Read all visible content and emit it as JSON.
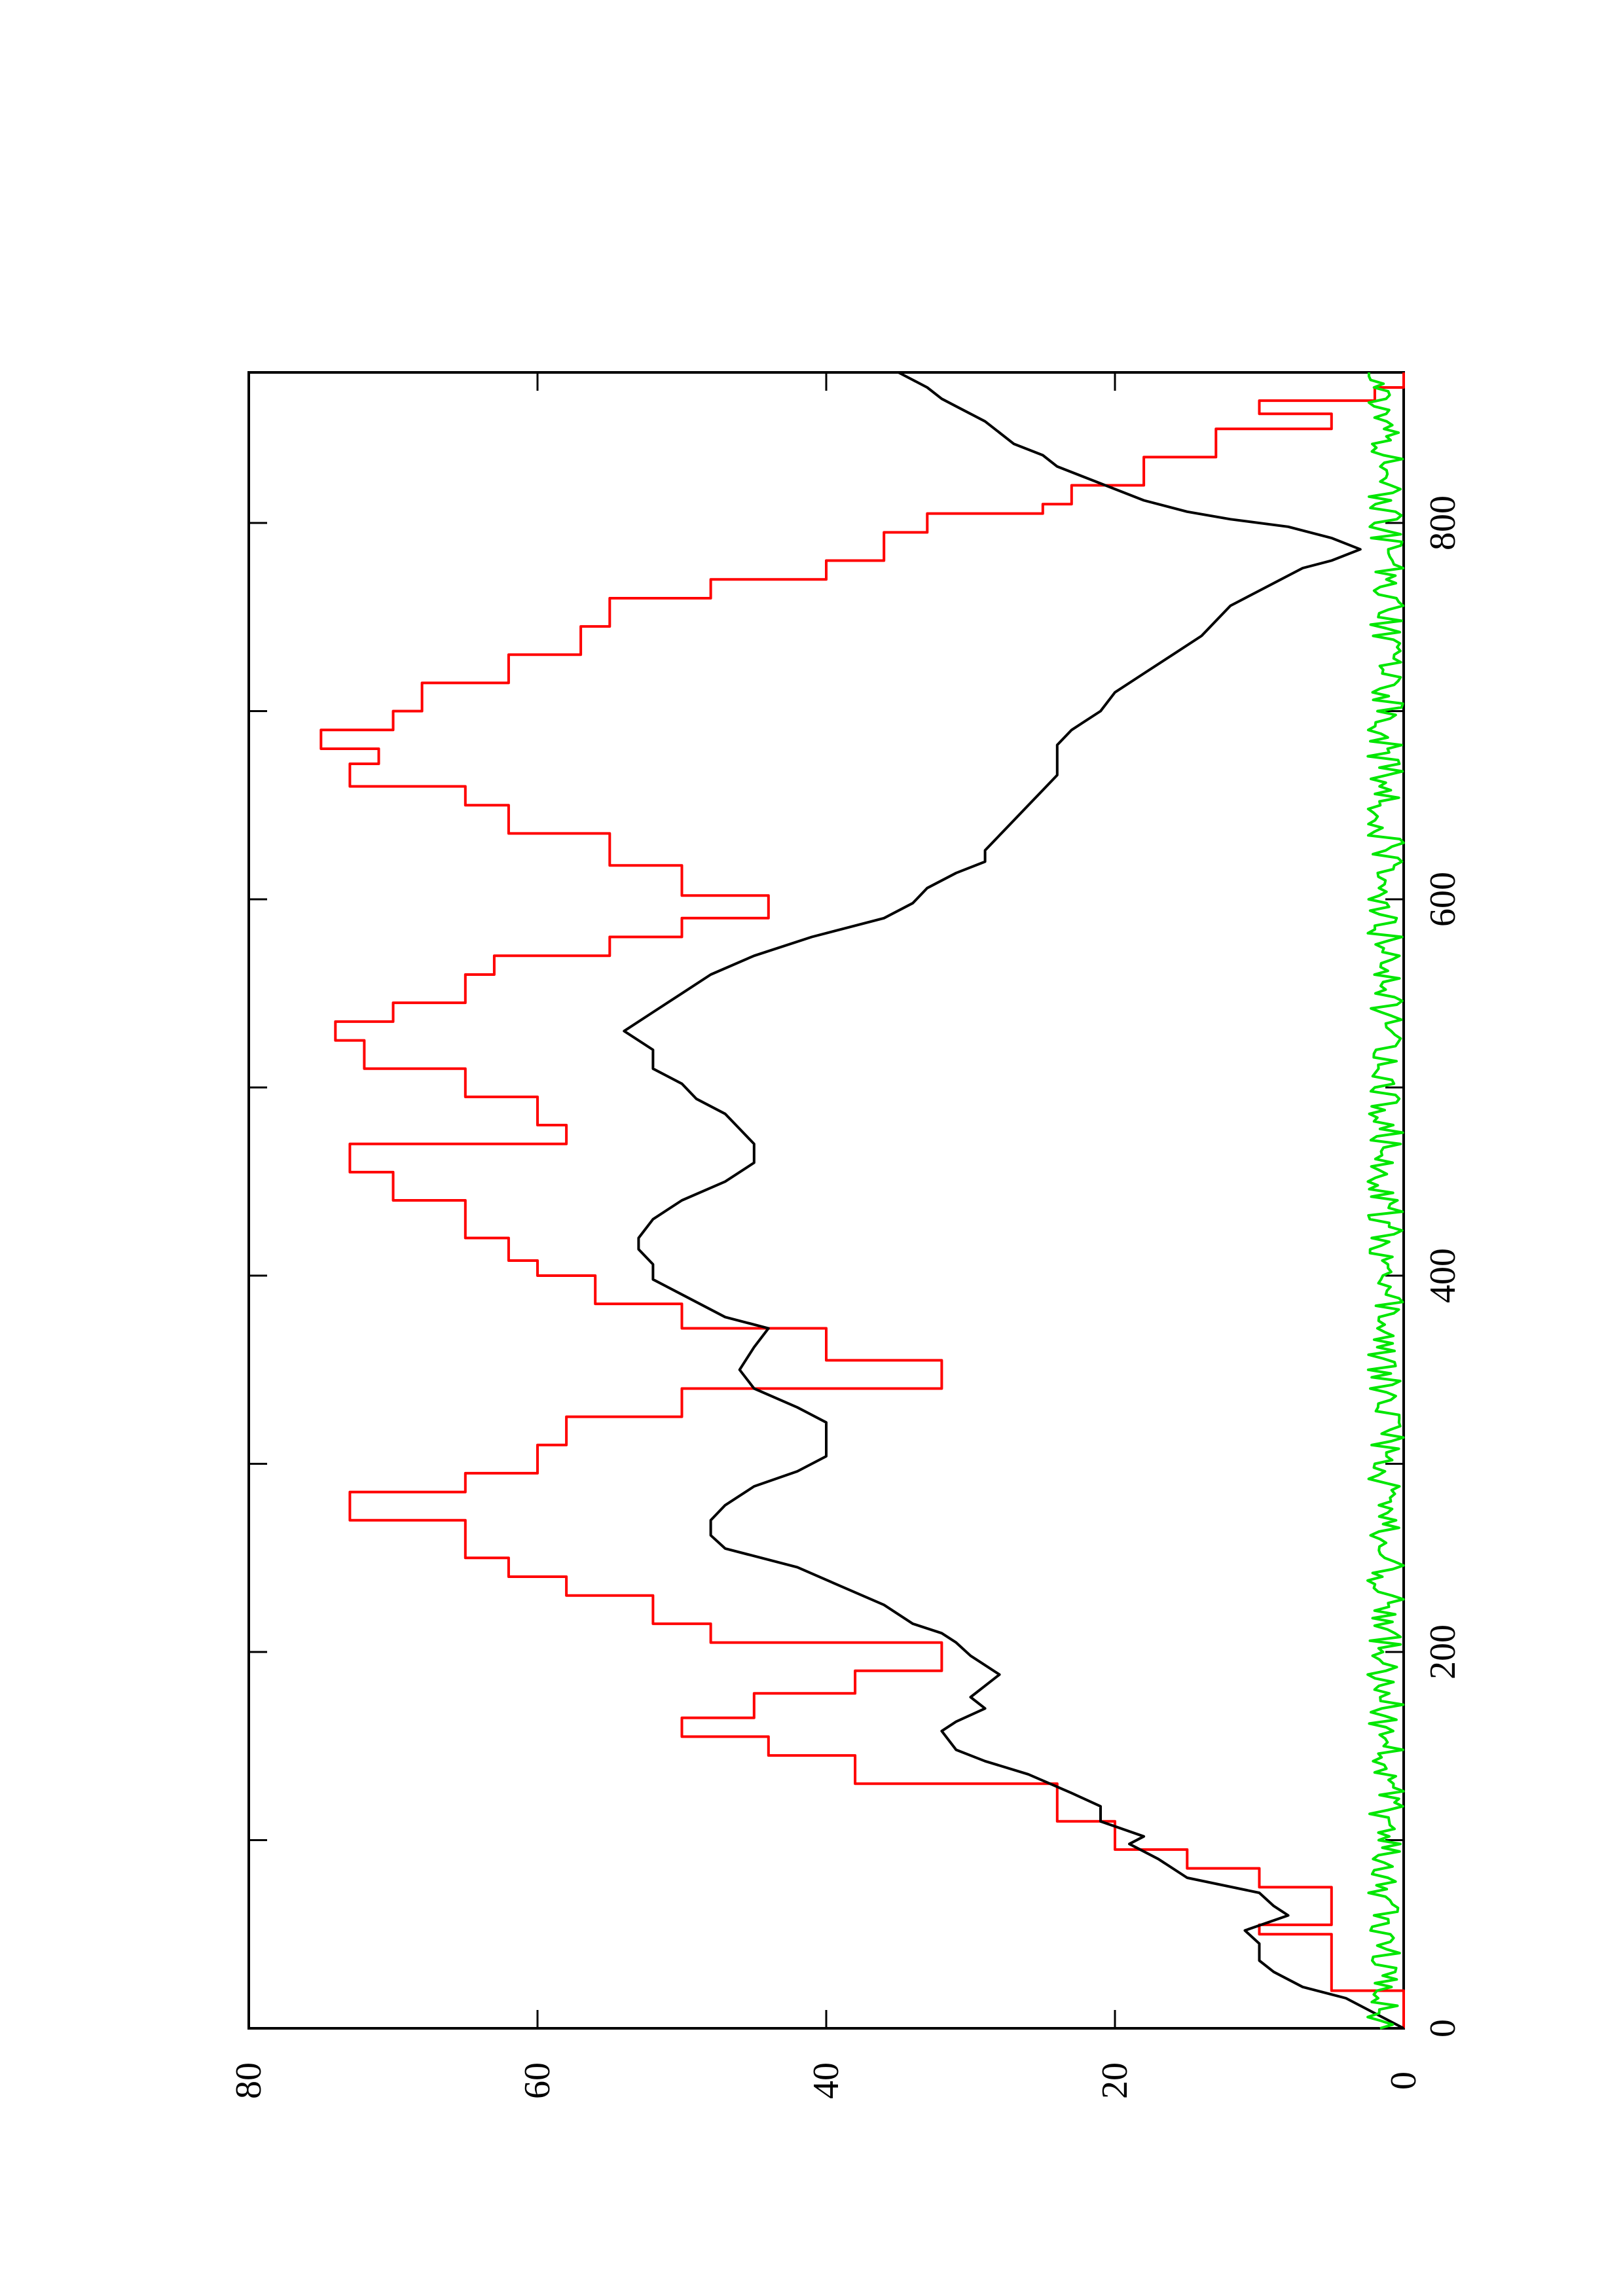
{
  "chart_data": {
    "type": "line",
    "orientation": "rotated 90° counter-clockwise (x axis runs upward, y axis runs leftward)",
    "title": "",
    "xlabel": "",
    "ylabel": "",
    "xlim": [
      0,
      880
    ],
    "ylim": [
      0,
      80
    ],
    "x_ticks": [
      0,
      200,
      400,
      600,
      800
    ],
    "x_minor_ticks": [
      100,
      300,
      500,
      700
    ],
    "y_ticks": [
      0,
      20,
      40,
      60,
      80
    ],
    "x_tick_labels": [
      "0",
      "200",
      "400",
      "600",
      "800"
    ],
    "y_tick_labels": [
      "0",
      "20",
      "40",
      "60",
      "80"
    ],
    "grid": false,
    "legend": "none",
    "series": [
      {
        "color": "#ff0000",
        "step": true,
        "points": [
          [
            0,
            0
          ],
          [
            20,
            0
          ],
          [
            20,
            5
          ],
          [
            50,
            5
          ],
          [
            50,
            10
          ],
          [
            55,
            10
          ],
          [
            55,
            5
          ],
          [
            75,
            5
          ],
          [
            75,
            10
          ],
          [
            85,
            10
          ],
          [
            85,
            15
          ],
          [
            95,
            15
          ],
          [
            95,
            20
          ],
          [
            110,
            20
          ],
          [
            110,
            24
          ],
          [
            130,
            24
          ],
          [
            130,
            38
          ],
          [
            145,
            38
          ],
          [
            145,
            44
          ],
          [
            155,
            44
          ],
          [
            155,
            50
          ],
          [
            165,
            50
          ],
          [
            165,
            45
          ],
          [
            178,
            45
          ],
          [
            178,
            38
          ],
          [
            190,
            38
          ],
          [
            190,
            32
          ],
          [
            205,
            32
          ],
          [
            205,
            48
          ],
          [
            215,
            48
          ],
          [
            215,
            52
          ],
          [
            230,
            52
          ],
          [
            230,
            58
          ],
          [
            240,
            58
          ],
          [
            240,
            62
          ],
          [
            250,
            62
          ],
          [
            250,
            65
          ],
          [
            270,
            65
          ],
          [
            270,
            73
          ],
          [
            285,
            73
          ],
          [
            285,
            65
          ],
          [
            295,
            65
          ],
          [
            295,
            60
          ],
          [
            310,
            60
          ],
          [
            310,
            58
          ],
          [
            325,
            58
          ],
          [
            325,
            50
          ],
          [
            340,
            50
          ],
          [
            340,
            32
          ],
          [
            355,
            32
          ],
          [
            355,
            40
          ],
          [
            372,
            40
          ],
          [
            372,
            50
          ],
          [
            385,
            50
          ],
          [
            385,
            56
          ],
          [
            400,
            56
          ],
          [
            400,
            60
          ],
          [
            408,
            60
          ],
          [
            408,
            62
          ],
          [
            420,
            62
          ],
          [
            420,
            65
          ],
          [
            440,
            65
          ],
          [
            440,
            70
          ],
          [
            455,
            70
          ],
          [
            455,
            73
          ],
          [
            470,
            73
          ],
          [
            470,
            58
          ],
          [
            480,
            58
          ],
          [
            480,
            60
          ],
          [
            495,
            60
          ],
          [
            495,
            65
          ],
          [
            510,
            65
          ],
          [
            510,
            72
          ],
          [
            525,
            72
          ],
          [
            525,
            74
          ],
          [
            535,
            74
          ],
          [
            535,
            70
          ],
          [
            545,
            70
          ],
          [
            545,
            65
          ],
          [
            560,
            65
          ],
          [
            560,
            63
          ],
          [
            570,
            63
          ],
          [
            570,
            55
          ],
          [
            580,
            55
          ],
          [
            580,
            50
          ],
          [
            590,
            50
          ],
          [
            590,
            44
          ],
          [
            602,
            44
          ],
          [
            602,
            50
          ],
          [
            618,
            50
          ],
          [
            618,
            55
          ],
          [
            635,
            55
          ],
          [
            635,
            62
          ],
          [
            650,
            62
          ],
          [
            650,
            65
          ],
          [
            660,
            65
          ],
          [
            660,
            73
          ],
          [
            672,
            73
          ],
          [
            672,
            71
          ],
          [
            680,
            71
          ],
          [
            680,
            75
          ],
          [
            690,
            75
          ],
          [
            690,
            70
          ],
          [
            700,
            70
          ],
          [
            700,
            68
          ],
          [
            715,
            68
          ],
          [
            715,
            62
          ],
          [
            730,
            62
          ],
          [
            730,
            57
          ],
          [
            745,
            57
          ],
          [
            745,
            55
          ],
          [
            760,
            55
          ],
          [
            760,
            48
          ],
          [
            770,
            48
          ],
          [
            770,
            40
          ],
          [
            780,
            40
          ],
          [
            780,
            36
          ],
          [
            795,
            36
          ],
          [
            795,
            33
          ],
          [
            805,
            33
          ],
          [
            805,
            25
          ],
          [
            810,
            25
          ],
          [
            810,
            23
          ],
          [
            820,
            23
          ],
          [
            820,
            18
          ],
          [
            835,
            18
          ],
          [
            835,
            13
          ],
          [
            850,
            13
          ],
          [
            850,
            5
          ],
          [
            858,
            5
          ],
          [
            858,
            10
          ],
          [
            865,
            10
          ],
          [
            865,
            2
          ],
          [
            872,
            2
          ],
          [
            872,
            0
          ],
          [
            880,
            0
          ]
        ]
      },
      {
        "color": "#000000",
        "step": false,
        "points": [
          [
            0,
            0
          ],
          [
            8,
            2
          ],
          [
            16,
            4
          ],
          [
            22,
            7
          ],
          [
            30,
            9
          ],
          [
            36,
            10
          ],
          [
            45,
            10
          ],
          [
            52,
            11
          ],
          [
            60,
            8
          ],
          [
            65,
            9
          ],
          [
            72,
            10
          ],
          [
            80,
            15
          ],
          [
            90,
            17
          ],
          [
            98,
            19
          ],
          [
            102,
            18
          ],
          [
            110,
            21
          ],
          [
            118,
            21
          ],
          [
            125,
            23
          ],
          [
            135,
            26
          ],
          [
            142,
            29
          ],
          [
            148,
            31
          ],
          [
            158,
            32
          ],
          [
            163,
            31
          ],
          [
            170,
            29
          ],
          [
            176,
            30
          ],
          [
            188,
            28
          ],
          [
            198,
            30
          ],
          [
            205,
            31
          ],
          [
            210,
            32
          ],
          [
            215,
            34
          ],
          [
            225,
            36
          ],
          [
            235,
            39
          ],
          [
            245,
            42
          ],
          [
            255,
            47
          ],
          [
            262,
            48
          ],
          [
            270,
            48
          ],
          [
            278,
            47
          ],
          [
            288,
            45
          ],
          [
            296,
            42
          ],
          [
            304,
            40
          ],
          [
            312,
            40
          ],
          [
            322,
            40
          ],
          [
            330,
            42
          ],
          [
            340,
            45
          ],
          [
            350,
            46
          ],
          [
            362,
            45
          ],
          [
            372,
            44
          ],
          [
            378,
            47
          ],
          [
            382,
            48
          ],
          [
            390,
            50
          ],
          [
            398,
            52
          ],
          [
            406,
            52
          ],
          [
            414,
            53
          ],
          [
            420,
            53
          ],
          [
            430,
            52
          ],
          [
            440,
            50
          ],
          [
            450,
            47
          ],
          [
            460,
            45
          ],
          [
            470,
            45
          ],
          [
            478,
            46
          ],
          [
            486,
            47
          ],
          [
            494,
            49
          ],
          [
            502,
            50
          ],
          [
            510,
            52
          ],
          [
            520,
            52
          ],
          [
            530,
            54
          ],
          [
            540,
            52
          ],
          [
            550,
            50
          ],
          [
            560,
            48
          ],
          [
            570,
            45
          ],
          [
            580,
            41
          ],
          [
            590,
            36
          ],
          [
            598,
            34
          ],
          [
            606,
            33
          ],
          [
            614,
            31
          ],
          [
            620,
            29
          ],
          [
            626,
            29
          ],
          [
            634,
            28
          ],
          [
            642,
            27
          ],
          [
            650,
            26
          ],
          [
            658,
            25
          ],
          [
            666,
            24
          ],
          [
            674,
            24
          ],
          [
            682,
            24
          ],
          [
            690,
            23
          ],
          [
            700,
            21
          ],
          [
            710,
            20
          ],
          [
            720,
            18
          ],
          [
            730,
            16
          ],
          [
            740,
            14
          ],
          [
            748,
            13
          ],
          [
            756,
            12
          ],
          [
            764,
            10
          ],
          [
            772,
            8
          ],
          [
            776,
            7
          ],
          [
            780,
            5
          ],
          [
            786,
            3
          ],
          [
            792,
            5
          ],
          [
            798,
            8
          ],
          [
            802,
            12
          ],
          [
            806,
            15
          ],
          [
            812,
            18
          ],
          [
            818,
            20
          ],
          [
            824,
            22
          ],
          [
            830,
            24
          ],
          [
            836,
            25
          ],
          [
            842,
            27
          ],
          [
            848,
            28
          ],
          [
            854,
            29
          ],
          [
            858,
            30
          ],
          [
            862,
            31
          ],
          [
            866,
            32
          ],
          [
            872,
            33
          ],
          [
            876,
            34
          ],
          [
            880,
            35
          ]
        ]
      },
      {
        "color": "#00e600",
        "step": false,
        "noise_band": [
          0,
          2.5
        ]
      }
    ]
  }
}
